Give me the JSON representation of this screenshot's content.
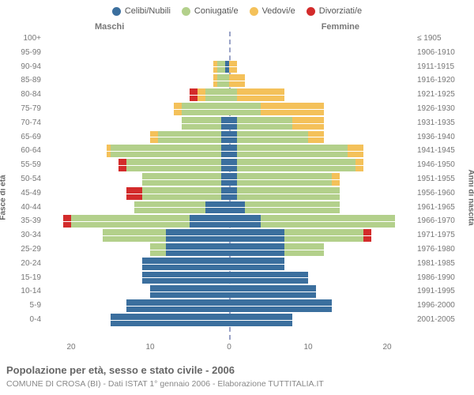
{
  "legend": [
    {
      "label": "Celibi/Nubili",
      "color": "#3b6f9e"
    },
    {
      "label": "Coniugati/e",
      "color": "#b3d08b"
    },
    {
      "label": "Vedovi/e",
      "color": "#f4c15a"
    },
    {
      "label": "Divorziati/e",
      "color": "#d32b2b"
    }
  ],
  "gender": {
    "m": "Maschi",
    "f": "Femmine"
  },
  "axis_left_title": "Fasce di età",
  "axis_right_title": "Anni di nascita",
  "title": "Popolazione per età, sesso e stato civile - 2006",
  "subtitle": "COMUNE DI CROSA (BI) - Dati ISTAT 1° gennaio 2006 - Elaborazione TUTTITALIA.IT",
  "x_ticks": [
    20,
    10,
    0,
    10,
    20
  ],
  "x_max": 23,
  "colors": {
    "single": "#3b6f9e",
    "married": "#b3d08b",
    "widow": "#f4c15a",
    "divorced": "#d32b2b",
    "grid": "#ffffff",
    "center": "#9aa3c7",
    "text": "#777777",
    "bg": "#ffffff"
  },
  "rows": [
    {
      "age": "100+",
      "birth": "≤ 1905",
      "m": [
        0,
        0,
        0,
        0
      ],
      "f": [
        0,
        0,
        0,
        0
      ]
    },
    {
      "age": "95-99",
      "birth": "1906-1910",
      "m": [
        0,
        0,
        0,
        0
      ],
      "f": [
        0,
        0,
        0,
        0
      ]
    },
    {
      "age": "90-94",
      "birth": "1911-1915",
      "m": [
        0.5,
        1,
        0.5,
        0
      ],
      "f": [
        0,
        0,
        1,
        0
      ]
    },
    {
      "age": "85-89",
      "birth": "1916-1920",
      "m": [
        0,
        1.5,
        0.5,
        0
      ],
      "f": [
        0,
        0,
        2,
        0
      ]
    },
    {
      "age": "80-84",
      "birth": "1921-1925",
      "m": [
        0,
        3,
        1,
        1
      ],
      "f": [
        0,
        1,
        6,
        0
      ]
    },
    {
      "age": "75-79",
      "birth": "1926-1930",
      "m": [
        0,
        6,
        1,
        0
      ],
      "f": [
        0,
        4,
        8,
        0
      ]
    },
    {
      "age": "70-74",
      "birth": "1931-1935",
      "m": [
        1,
        5,
        0,
        0
      ],
      "f": [
        1,
        7,
        4,
        0
      ]
    },
    {
      "age": "65-69",
      "birth": "1936-1940",
      "m": [
        1,
        8,
        1,
        0
      ],
      "f": [
        1,
        9,
        2,
        0
      ]
    },
    {
      "age": "60-64",
      "birth": "1941-1945",
      "m": [
        1,
        14,
        0.5,
        0
      ],
      "f": [
        1,
        14,
        2,
        0
      ]
    },
    {
      "age": "55-59",
      "birth": "1946-1950",
      "m": [
        1,
        12,
        0,
        1
      ],
      "f": [
        1,
        15,
        1,
        0
      ]
    },
    {
      "age": "50-54",
      "birth": "1951-1955",
      "m": [
        1,
        10,
        0,
        0
      ],
      "f": [
        1,
        12,
        1,
        0
      ]
    },
    {
      "age": "45-49",
      "birth": "1956-1960",
      "m": [
        1,
        10,
        0,
        2
      ],
      "f": [
        1,
        13,
        0,
        0
      ]
    },
    {
      "age": "40-44",
      "birth": "1961-1965",
      "m": [
        3,
        9,
        0,
        0
      ],
      "f": [
        2,
        12,
        0,
        0
      ]
    },
    {
      "age": "35-39",
      "birth": "1966-1970",
      "m": [
        5,
        15,
        0,
        1
      ],
      "f": [
        4,
        17,
        0,
        0
      ]
    },
    {
      "age": "30-34",
      "birth": "1971-1975",
      "m": [
        8,
        8,
        0,
        0
      ],
      "f": [
        7,
        10,
        0,
        1
      ]
    },
    {
      "age": "25-29",
      "birth": "1976-1980",
      "m": [
        8,
        2,
        0,
        0
      ],
      "f": [
        7,
        5,
        0,
        0
      ]
    },
    {
      "age": "20-24",
      "birth": "1981-1985",
      "m": [
        11,
        0,
        0,
        0
      ],
      "f": [
        7,
        0,
        0,
        0
      ]
    },
    {
      "age": "15-19",
      "birth": "1986-1990",
      "m": [
        11,
        0,
        0,
        0
      ],
      "f": [
        10,
        0,
        0,
        0
      ]
    },
    {
      "age": "10-14",
      "birth": "1991-1995",
      "m": [
        10,
        0,
        0,
        0
      ],
      "f": [
        11,
        0,
        0,
        0
      ]
    },
    {
      "age": "5-9",
      "birth": "1996-2000",
      "m": [
        13,
        0,
        0,
        0
      ],
      "f": [
        13,
        0,
        0,
        0
      ]
    },
    {
      "age": "0-4",
      "birth": "2001-2005",
      "m": [
        15,
        0,
        0,
        0
      ],
      "f": [
        8,
        0,
        0,
        0
      ]
    }
  ]
}
